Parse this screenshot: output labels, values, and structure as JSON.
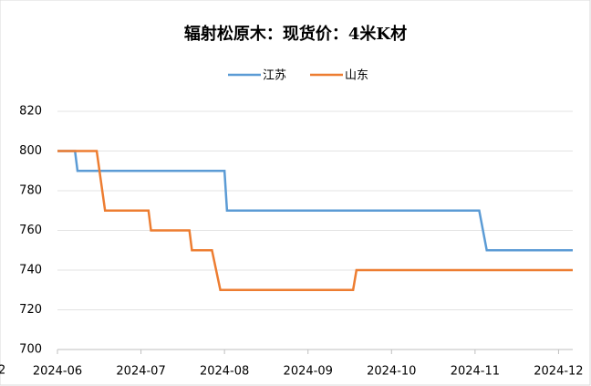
{
  "chart_data": {
    "type": "line",
    "title": "辐射松原木：现货价：4米K材",
    "clipped_label": "2",
    "legend": "top",
    "grid": true,
    "xlim": [
      0,
      6.17
    ],
    "xticks": [
      {
        "value": 0,
        "label": "2024-06"
      },
      {
        "value": 1,
        "label": "2024-07"
      },
      {
        "value": 2,
        "label": "2024-08"
      },
      {
        "value": 3,
        "label": "2024-09"
      },
      {
        "value": 4,
        "label": "2024-10"
      },
      {
        "value": 5,
        "label": "2024-11"
      },
      {
        "value": 6,
        "label": "2024-12"
      }
    ],
    "ylim": [
      700,
      820
    ],
    "yticks": [
      700,
      720,
      740,
      760,
      780,
      800,
      820
    ],
    "series": [
      {
        "name": "江苏",
        "color": "#5b9bd5",
        "x": [
          0,
          0.21,
          0.24,
          2.0,
          2.03,
          5.05,
          5.14,
          6.17
        ],
        "values": [
          800,
          800,
          790,
          790,
          770,
          770,
          750,
          750
        ]
      },
      {
        "name": "山东",
        "color": "#ed7d31",
        "x": [
          0,
          0.47,
          0.57,
          1.09,
          1.12,
          1.58,
          1.61,
          1.85,
          1.95,
          3.54,
          3.58,
          6.17
        ],
        "values": [
          800,
          800,
          770,
          770,
          760,
          760,
          750,
          750,
          730,
          730,
          740,
          740
        ]
      }
    ]
  }
}
